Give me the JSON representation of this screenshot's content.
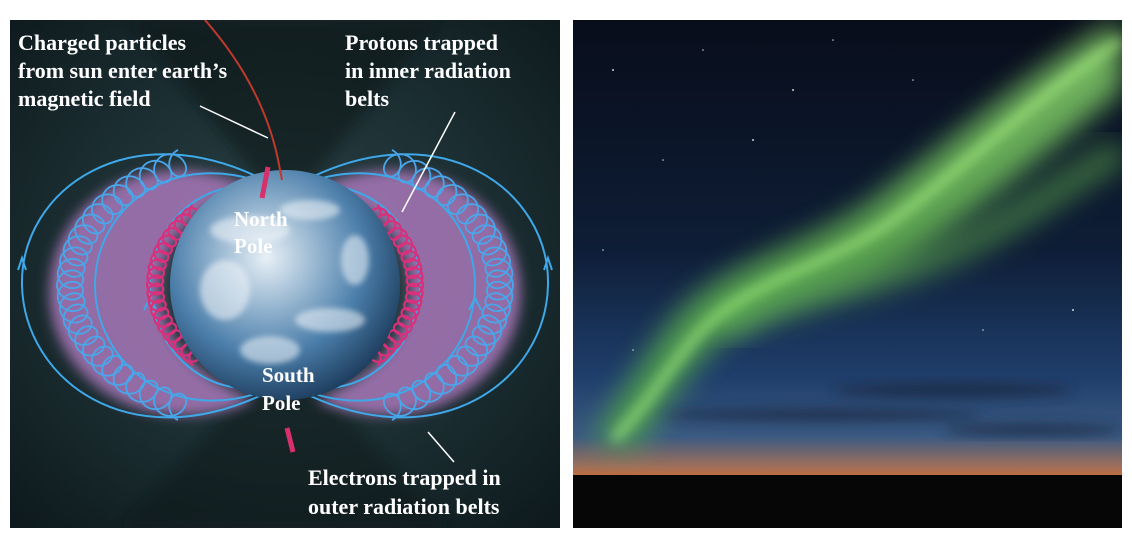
{
  "diagram": {
    "labels": {
      "charged_particles": [
        "Charged particles",
        "from sun enter earth’s",
        "magnetic field"
      ],
      "protons": [
        "Protons trapped",
        "in inner radiation",
        "belts"
      ],
      "north_pole": [
        "North",
        "Pole"
      ],
      "south_pole": [
        "South",
        "Pole"
      ],
      "electrons": [
        "Electrons trapped in",
        "outer radiation belts"
      ]
    },
    "colors": {
      "background": "#16262a",
      "field_lines": "#3ea8e8",
      "outer_belt_spiral": "#4aa6ea",
      "inner_belt_spiral": "#d8307a",
      "belt_glow": "#a877b8",
      "particle_track": "#c0392b",
      "earth": "#5c8eb6"
    }
  },
  "photo": {
    "subject": "aurora-borealis-photo",
    "colors": {
      "sky_top": "#0a1020",
      "sky_low": "#2a4a7a",
      "aurora": "#7be05a",
      "horizon_glow": "#e07030",
      "ground": "#080808"
    }
  }
}
